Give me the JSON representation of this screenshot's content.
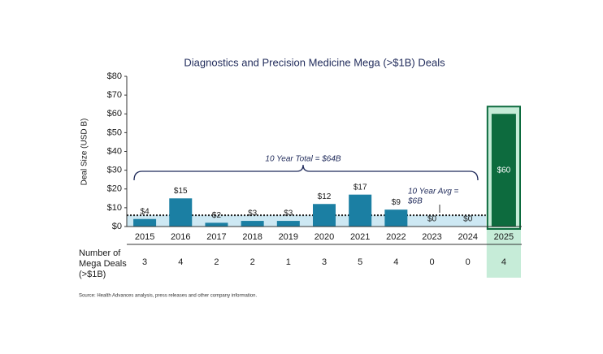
{
  "chart_data": {
    "type": "bar",
    "title": "Diagnostics and Precision Medicine Mega (>$1B) Deals",
    "y_label": "Deal Size (USD B)",
    "categories": [
      "2015",
      "2016",
      "2017",
      "2018",
      "2019",
      "2020",
      "2021",
      "2022",
      "2023",
      "2024",
      "2025"
    ],
    "values": [
      4,
      15,
      2,
      3,
      3,
      12,
      17,
      9,
      0,
      0,
      60
    ],
    "value_labels": [
      "$4",
      "$15",
      "$2",
      "$3",
      "$3",
      "$12",
      "$17",
      "$9",
      "$0",
      "$0",
      "$60"
    ],
    "color": "#1b7fa3",
    "highlight_color": "#0d6b3e",
    "ylim": [
      0,
      80
    ],
    "yticks": [
      {
        "value": 0,
        "label": "$0"
      },
      {
        "value": 10,
        "label": "$10"
      },
      {
        "value": 20,
        "label": "$20"
      },
      {
        "value": 30,
        "label": "$30"
      },
      {
        "value": 40,
        "label": "$40"
      },
      {
        "value": 50,
        "label": "$50"
      },
      {
        "value": 60,
        "label": "$60"
      },
      {
        "value": 70,
        "label": "$70"
      },
      {
        "value": 80,
        "label": "$80"
      }
    ],
    "avg_line": 6,
    "annotations": [
      "10 Year Total = $64B",
      "10 Year Avg =",
      "$6B"
    ],
    "table_label": [
      "Number of",
      "Mega Deals",
      "(>$1B)"
    ],
    "deal_counts": [
      3,
      4,
      2,
      2,
      1,
      3,
      5,
      4,
      0,
      0,
      4
    ],
    "source": "Source:  Health Advances analysis, press releases and other company information."
  }
}
